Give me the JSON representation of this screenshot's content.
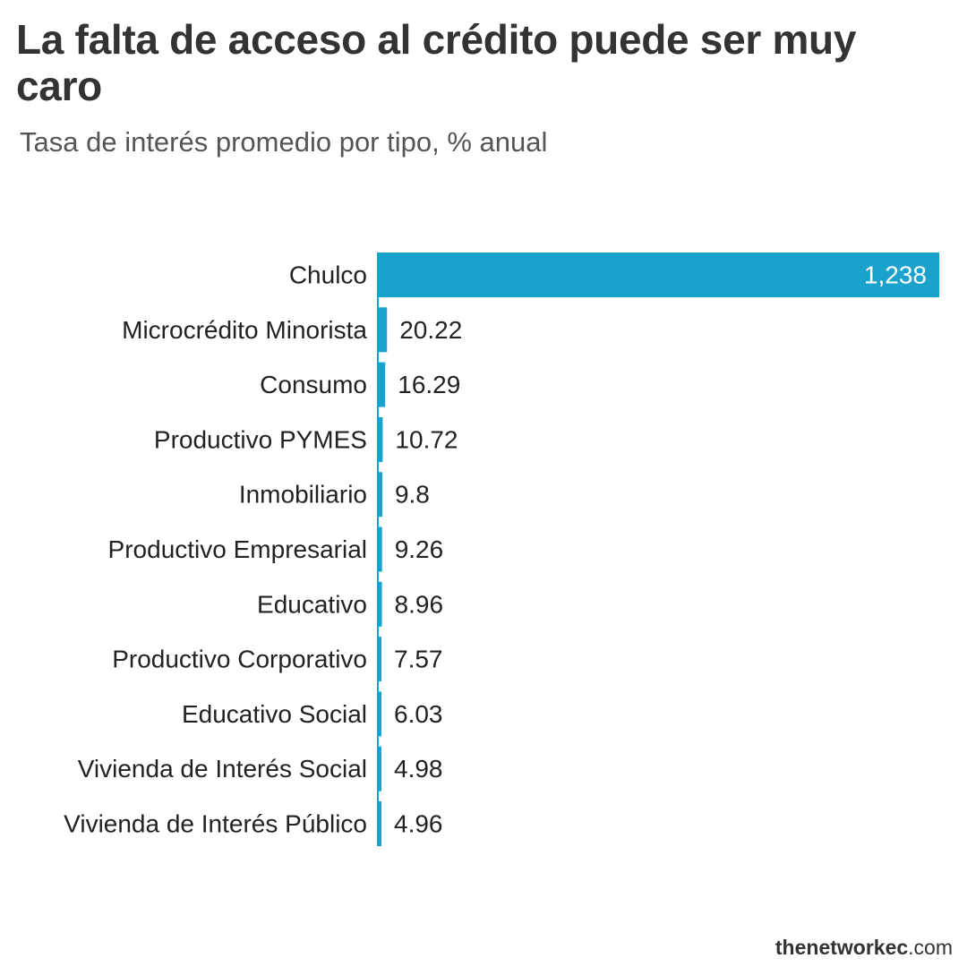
{
  "title": "La falta de acceso al crédito puede ser muy caro",
  "subtitle": "Tasa de interés promedio por tipo, % anual",
  "brand": {
    "name": "thenetworkec",
    "suffix": ".com"
  },
  "colors": {
    "bar": "#1aa1cc"
  },
  "chart_data": {
    "type": "bar",
    "orientation": "horizontal",
    "categories": [
      "Chulco",
      "Microcrédito Minorista",
      "Consumo",
      "Productivo PYMES",
      "Inmobiliario",
      "Productivo Empresarial",
      "Educativo",
      "Productivo Corporativo",
      "Educativo Social",
      "Vivienda de Interés Social",
      "Vivienda de Interés Público"
    ],
    "values": [
      1238,
      20.22,
      16.29,
      10.72,
      9.8,
      9.26,
      8.96,
      7.57,
      6.03,
      4.98,
      4.96
    ],
    "value_labels": [
      "1,238",
      "20.22",
      "16.29",
      "10.72",
      "9.8",
      "9.26",
      "8.96",
      "7.57",
      "6.03",
      "4.98",
      "4.96"
    ],
    "title": "La falta de acceso al crédito puede ser muy caro",
    "subtitle": "Tasa de interés promedio por tipo, % anual",
    "xlim": [
      0,
      1238
    ],
    "grid": false,
    "legend": "none"
  }
}
